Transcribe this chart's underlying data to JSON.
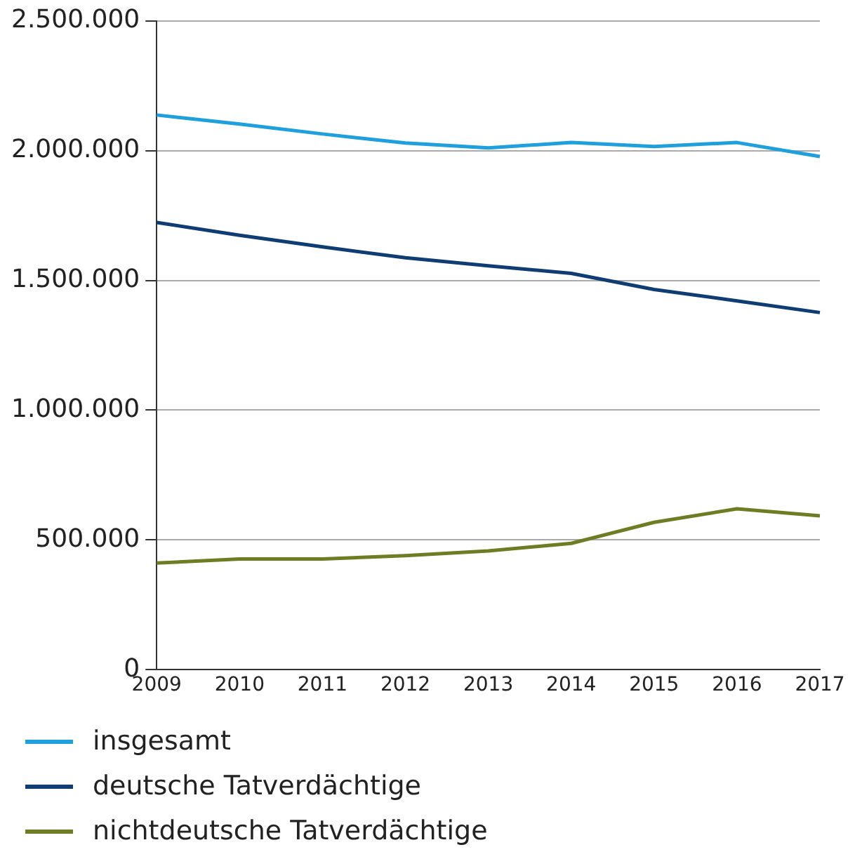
{
  "chart_data": {
    "type": "line",
    "categories": [
      "2009",
      "2010",
      "2011",
      "2012",
      "2013",
      "2014",
      "2015",
      "2016",
      "2017"
    ],
    "series": [
      {
        "name": "insgesamt",
        "color": "#1fa0dc",
        "values": [
          2137000,
          2102000,
          2064000,
          2029000,
          2010000,
          2031000,
          2016000,
          2031000,
          1977000
        ]
      },
      {
        "name": "deutsche Tatverdächtige",
        "color": "#0f3c73",
        "values": [
          1723000,
          1674000,
          1629000,
          1587000,
          1556000,
          1527000,
          1465000,
          1421000,
          1376000
        ]
      },
      {
        "name": "nichtdeutsche Tatverdächtige",
        "color": "#6e7d23",
        "values": [
          411000,
          427000,
          427000,
          440000,
          458000,
          487000,
          568000,
          620000,
          593000
        ]
      }
    ],
    "ylim": [
      0,
      2500000
    ],
    "yticks": [
      {
        "value": 0,
        "label": "0"
      },
      {
        "value": 500000,
        "label": "500.000"
      },
      {
        "value": 1000000,
        "label": "1.000.000"
      },
      {
        "value": 1500000,
        "label": "1.500.000"
      },
      {
        "value": 2000000,
        "label": "2.000.000"
      },
      {
        "value": 2500000,
        "label": "2.500.000"
      }
    ],
    "grid": "y",
    "legend": "bottom",
    "marker": "none",
    "line_style": "solid"
  }
}
